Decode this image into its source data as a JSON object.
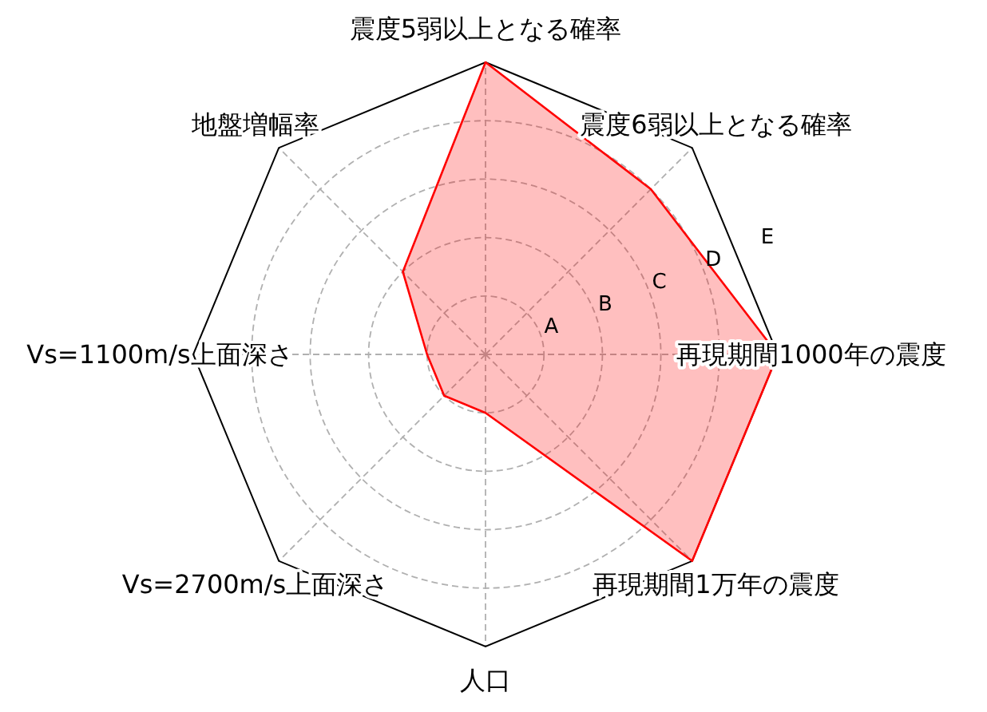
{
  "chart_data": {
    "type": "radar",
    "categories": [
      "震度5弱以上となる確率",
      "震度6弱以上となる確率",
      "再現期間1000年の震度",
      "再現期間1万年の震度",
      "人口",
      "Vs=2700m/s上面深さ",
      "Vs=1100m/s上面深さ",
      "地盤増幅率"
    ],
    "series": [
      {
        "color": "#ff0000",
        "values": [
          5,
          4,
          5,
          5,
          1,
          1,
          1,
          2
        ]
      }
    ],
    "ylim": [
      0,
      5
    ],
    "yticks": [
      {
        "value": 1,
        "label": "A"
      },
      {
        "value": 2,
        "label": "B"
      },
      {
        "value": 3,
        "label": "C"
      },
      {
        "value": 4,
        "label": "D"
      },
      {
        "value": 5,
        "label": "E"
      }
    ],
    "grid": true
  }
}
